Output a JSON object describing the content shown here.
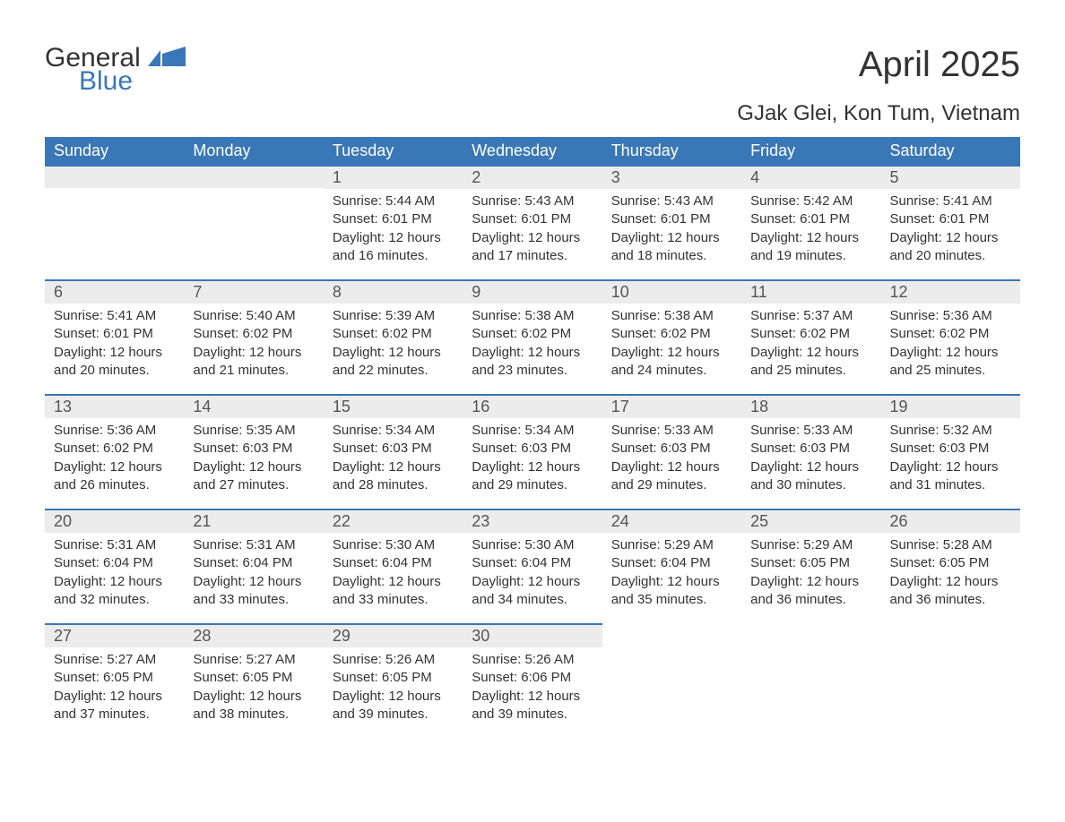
{
  "logo": {
    "word1": "General",
    "word2": "Blue"
  },
  "title": "April 2025",
  "location": "GJak Glei, Kon Tum, Vietnam",
  "colors": {
    "brand_blue": "#3a77b7",
    "header_bg": "#3a77b7",
    "header_text": "#ffffff",
    "daybar_bg": "#ececec",
    "daybar_border": "#3a77b7",
    "body_text": "#333333",
    "background": "#ffffff"
  },
  "typography": {
    "month_title_fontsize": 40,
    "location_fontsize": 24,
    "weekday_fontsize": 18,
    "daynum_fontsize": 18,
    "body_fontsize": 15
  },
  "weekdays": [
    "Sunday",
    "Monday",
    "Tuesday",
    "Wednesday",
    "Thursday",
    "Friday",
    "Saturday"
  ],
  "labels": {
    "sunrise": "Sunrise: ",
    "sunset": "Sunset: ",
    "daylight": "Daylight: "
  },
  "weeks": [
    [
      null,
      null,
      {
        "n": "1",
        "sunrise": "5:44 AM",
        "sunset": "6:01 PM",
        "daylight": "12 hours and 16 minutes."
      },
      {
        "n": "2",
        "sunrise": "5:43 AM",
        "sunset": "6:01 PM",
        "daylight": "12 hours and 17 minutes."
      },
      {
        "n": "3",
        "sunrise": "5:43 AM",
        "sunset": "6:01 PM",
        "daylight": "12 hours and 18 minutes."
      },
      {
        "n": "4",
        "sunrise": "5:42 AM",
        "sunset": "6:01 PM",
        "daylight": "12 hours and 19 minutes."
      },
      {
        "n": "5",
        "sunrise": "5:41 AM",
        "sunset": "6:01 PM",
        "daylight": "12 hours and 20 minutes."
      }
    ],
    [
      {
        "n": "6",
        "sunrise": "5:41 AM",
        "sunset": "6:01 PM",
        "daylight": "12 hours and 20 minutes."
      },
      {
        "n": "7",
        "sunrise": "5:40 AM",
        "sunset": "6:02 PM",
        "daylight": "12 hours and 21 minutes."
      },
      {
        "n": "8",
        "sunrise": "5:39 AM",
        "sunset": "6:02 PM",
        "daylight": "12 hours and 22 minutes."
      },
      {
        "n": "9",
        "sunrise": "5:38 AM",
        "sunset": "6:02 PM",
        "daylight": "12 hours and 23 minutes."
      },
      {
        "n": "10",
        "sunrise": "5:38 AM",
        "sunset": "6:02 PM",
        "daylight": "12 hours and 24 minutes."
      },
      {
        "n": "11",
        "sunrise": "5:37 AM",
        "sunset": "6:02 PM",
        "daylight": "12 hours and 25 minutes."
      },
      {
        "n": "12",
        "sunrise": "5:36 AM",
        "sunset": "6:02 PM",
        "daylight": "12 hours and 25 minutes."
      }
    ],
    [
      {
        "n": "13",
        "sunrise": "5:36 AM",
        "sunset": "6:02 PM",
        "daylight": "12 hours and 26 minutes."
      },
      {
        "n": "14",
        "sunrise": "5:35 AM",
        "sunset": "6:03 PM",
        "daylight": "12 hours and 27 minutes."
      },
      {
        "n": "15",
        "sunrise": "5:34 AM",
        "sunset": "6:03 PM",
        "daylight": "12 hours and 28 minutes."
      },
      {
        "n": "16",
        "sunrise": "5:34 AM",
        "sunset": "6:03 PM",
        "daylight": "12 hours and 29 minutes."
      },
      {
        "n": "17",
        "sunrise": "5:33 AM",
        "sunset": "6:03 PM",
        "daylight": "12 hours and 29 minutes."
      },
      {
        "n": "18",
        "sunrise": "5:33 AM",
        "sunset": "6:03 PM",
        "daylight": "12 hours and 30 minutes."
      },
      {
        "n": "19",
        "sunrise": "5:32 AM",
        "sunset": "6:03 PM",
        "daylight": "12 hours and 31 minutes."
      }
    ],
    [
      {
        "n": "20",
        "sunrise": "5:31 AM",
        "sunset": "6:04 PM",
        "daylight": "12 hours and 32 minutes."
      },
      {
        "n": "21",
        "sunrise": "5:31 AM",
        "sunset": "6:04 PM",
        "daylight": "12 hours and 33 minutes."
      },
      {
        "n": "22",
        "sunrise": "5:30 AM",
        "sunset": "6:04 PM",
        "daylight": "12 hours and 33 minutes."
      },
      {
        "n": "23",
        "sunrise": "5:30 AM",
        "sunset": "6:04 PM",
        "daylight": "12 hours and 34 minutes."
      },
      {
        "n": "24",
        "sunrise": "5:29 AM",
        "sunset": "6:04 PM",
        "daylight": "12 hours and 35 minutes."
      },
      {
        "n": "25",
        "sunrise": "5:29 AM",
        "sunset": "6:05 PM",
        "daylight": "12 hours and 36 minutes."
      },
      {
        "n": "26",
        "sunrise": "5:28 AM",
        "sunset": "6:05 PM",
        "daylight": "12 hours and 36 minutes."
      }
    ],
    [
      {
        "n": "27",
        "sunrise": "5:27 AM",
        "sunset": "6:05 PM",
        "daylight": "12 hours and 37 minutes."
      },
      {
        "n": "28",
        "sunrise": "5:27 AM",
        "sunset": "6:05 PM",
        "daylight": "12 hours and 38 minutes."
      },
      {
        "n": "29",
        "sunrise": "5:26 AM",
        "sunset": "6:05 PM",
        "daylight": "12 hours and 39 minutes."
      },
      {
        "n": "30",
        "sunrise": "5:26 AM",
        "sunset": "6:06 PM",
        "daylight": "12 hours and 39 minutes."
      },
      null,
      null,
      null
    ]
  ]
}
